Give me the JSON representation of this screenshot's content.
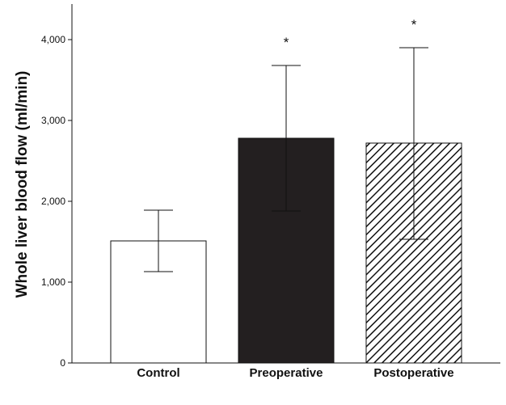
{
  "chart_data": {
    "type": "bar",
    "ylabel": "Whole liver blood flow (ml/min)",
    "ylim": [
      0,
      4500
    ],
    "yticks": [
      0,
      1000,
      2000,
      3000,
      4000
    ],
    "ytick_labels": [
      "0",
      "1,000",
      "2,000",
      "3,000",
      "4,000"
    ],
    "categories": [
      "Control",
      "Preoperative",
      "Postoperative"
    ],
    "values": [
      1510,
      2780,
      2720
    ],
    "error_upper": [
      1890,
      3680,
      3900
    ],
    "error_lower": [
      1130,
      1880,
      1530
    ],
    "fills": [
      "white",
      "solid",
      "hatched"
    ],
    "colors": {
      "solid": "#231f20",
      "stroke": "#111111"
    },
    "annotations": [
      "",
      "*",
      "*"
    ],
    "grid": false
  }
}
